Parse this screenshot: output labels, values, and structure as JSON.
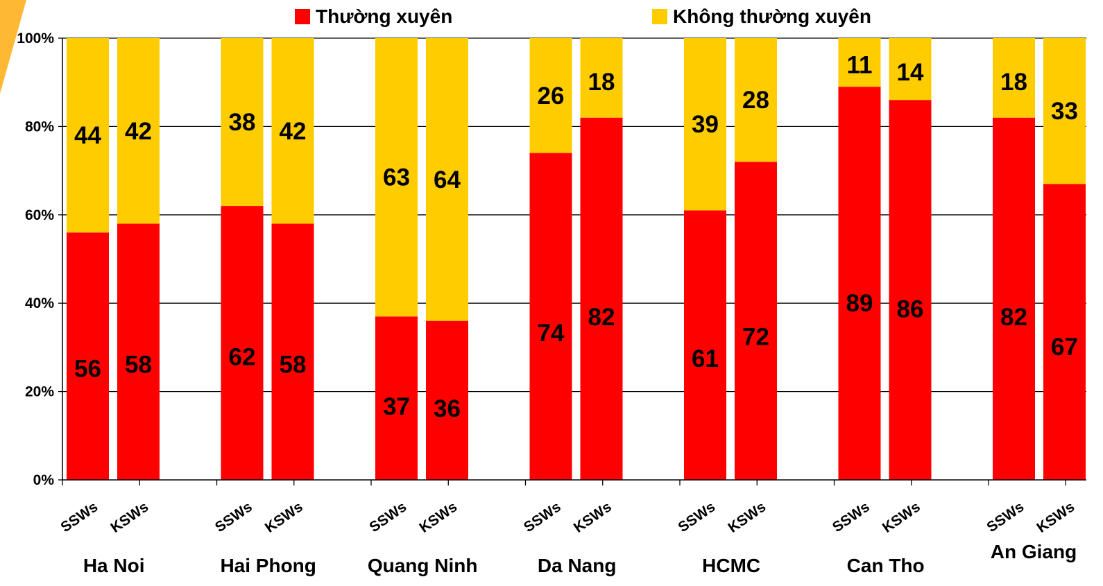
{
  "legend": [
    {
      "name": "Thường xuyên",
      "color": "#FF0000"
    },
    {
      "name": "Không thường xuyên",
      "color": "#FFCC00"
    }
  ],
  "chart_data": {
    "type": "bar",
    "stacked": true,
    "percent_stacked": true,
    "groups": [
      "Ha Noi",
      "Hai Phong",
      "Quang Ninh",
      "Da Nang",
      "HCMC",
      "Can Tho",
      "An Giang"
    ],
    "subcategories": [
      "SSWs",
      "KSWs"
    ],
    "series": [
      {
        "name": "Thường xuyên",
        "color": "#FF0000",
        "values": [
          56,
          58,
          62,
          58,
          37,
          36,
          74,
          82,
          61,
          72,
          89,
          86,
          82,
          67
        ]
      },
      {
        "name": "Không thường xuyên",
        "color": "#FFCC00",
        "values": [
          44,
          42,
          38,
          42,
          63,
          64,
          26,
          18,
          39,
          28,
          11,
          14,
          18,
          33
        ]
      }
    ],
    "y_ticks": [
      "0%",
      "20%",
      "40%",
      "60%",
      "80%",
      "100%"
    ],
    "ylim": [
      0,
      100
    ],
    "grid": true,
    "legend_position": "top"
  }
}
